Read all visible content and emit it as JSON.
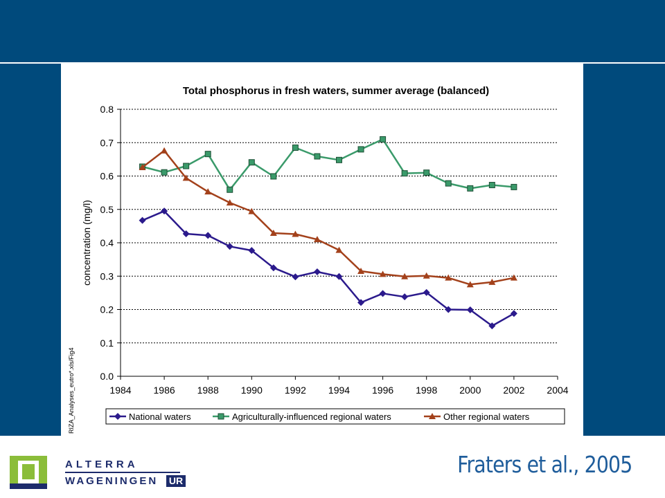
{
  "citation": "Fraters et al., 2005",
  "logo": {
    "line1": "ALTERRA",
    "line2": "WAGENINGEN",
    "line3": "UR"
  },
  "colors": {
    "frame": "#004a7c",
    "citation": "#1f5d9b",
    "logo_green": "#8bbd3a",
    "logo_navy": "#1c2b6b"
  },
  "chart_data": {
    "type": "line",
    "title": "Total phosphorus in fresh waters, summer average (balanced)",
    "xlabel": "",
    "ylabel": "concentration (mg/l)",
    "side_note": "RIZA_Analyses_eutro*.xls/Fig4",
    "xlim": [
      1984,
      2004
    ],
    "ylim": [
      0,
      0.8
    ],
    "x_ticks": [
      1984,
      1986,
      1988,
      1990,
      1992,
      1994,
      1996,
      1998,
      2000,
      2002,
      2004
    ],
    "y_ticks": [
      "0.0",
      "0.1",
      "0.2",
      "0.3",
      "0.4",
      "0.5",
      "0.6",
      "0.7",
      "0.8"
    ],
    "grid": "horizontal dotted",
    "legend_position": "bottom",
    "series": [
      {
        "name": "National waters",
        "color": "#2b1a8c",
        "marker": "diamond",
        "x": [
          1985,
          1986,
          1987,
          1988,
          1989,
          1990,
          1991,
          1992,
          1993,
          1994,
          1995,
          1996,
          1997,
          1998,
          1999,
          2000,
          2001,
          2002
        ],
        "y": [
          0.467,
          0.495,
          0.427,
          0.422,
          0.389,
          0.377,
          0.325,
          0.298,
          0.313,
          0.299,
          0.221,
          0.248,
          0.238,
          0.251,
          0.2,
          0.199,
          0.151,
          0.188
        ]
      },
      {
        "name": "Agriculturally-influenced regional waters",
        "color": "#3a9a6a",
        "marker": "square",
        "x": [
          1985,
          1986,
          1987,
          1988,
          1989,
          1990,
          1991,
          1992,
          1993,
          1994,
          1995,
          1996,
          1997,
          1998,
          1999,
          2000,
          2001,
          2002
        ],
        "y": [
          0.628,
          0.611,
          0.63,
          0.666,
          0.559,
          0.641,
          0.599,
          0.685,
          0.659,
          0.648,
          0.68,
          0.71,
          0.608,
          0.61,
          0.578,
          0.563,
          0.573,
          0.567
        ]
      },
      {
        "name": "Other regional waters",
        "color": "#a3411b",
        "marker": "triangle",
        "x": [
          1985,
          1986,
          1987,
          1988,
          1989,
          1990,
          1991,
          1992,
          1993,
          1994,
          1995,
          1996,
          1997,
          1998,
          1999,
          2000,
          2001,
          2002
        ],
        "y": [
          0.626,
          0.676,
          0.594,
          0.553,
          0.52,
          0.494,
          0.429,
          0.426,
          0.41,
          0.378,
          0.315,
          0.306,
          0.299,
          0.301,
          0.295,
          0.275,
          0.282,
          0.295
        ]
      }
    ]
  }
}
